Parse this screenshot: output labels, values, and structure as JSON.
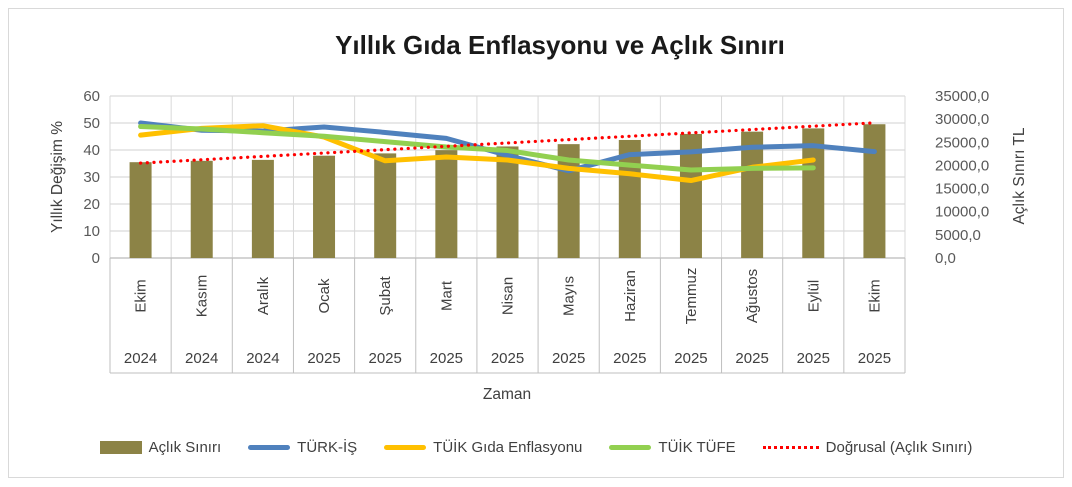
{
  "chart_data": {
    "type": "combo-bar-line",
    "title": "Yıllık Gıda Enflasyonu ve Açlık Sınırı",
    "x_axis": {
      "title": "Zaman",
      "month_labels": [
        "Ekim",
        "Kasım",
        "Aralık",
        "Ocak",
        "Şubat",
        "Mart",
        "Nisan",
        "Mayıs",
        "Haziran",
        "Temmuz",
        "Ağustos",
        "Eylül",
        "Ekim"
      ],
      "year_labels": [
        "2024",
        "2024",
        "2024",
        "2025",
        "2025",
        "2025",
        "2025",
        "2025",
        "2025",
        "2025",
        "2025",
        "2025",
        "2025"
      ]
    },
    "y_axis_left": {
      "title": "Yıllık Değişim %",
      "min": 0,
      "max": 60,
      "tick_labels": [
        "60",
        "50",
        "40",
        "30",
        "20",
        "10",
        "0"
      ]
    },
    "y_axis_right": {
      "title": "Açlık Sınırı TL",
      "min": 0,
      "max": 35000,
      "tick_labels": [
        "35000,0",
        "30000,0",
        "25000,0",
        "20000,0",
        "15000,0",
        "10000,0",
        "5000,0",
        "0,0"
      ]
    },
    "grid": {
      "horizontal": true,
      "vertical": true,
      "color": "#d9d9d9",
      "axis_line_color": "#bfbfbf"
    },
    "series": [
      {
        "name": "Açlık Sınırı",
        "type": "bar",
        "axis": "right",
        "color": "#8C8346",
        "values": [
          20700,
          21000,
          21200,
          22100,
          22600,
          23300,
          24100,
          24600,
          25500,
          26800,
          27300,
          28000,
          28900
        ]
      },
      {
        "name": "TÜRK-İŞ",
        "type": "line",
        "axis": "left",
        "color": "#4F81BD",
        "values": [
          50.0,
          47.3,
          47.0,
          48.5,
          46.5,
          44.3,
          38.0,
          32.3,
          38.3,
          39.3,
          41.0,
          41.6,
          39.4
        ]
      },
      {
        "name": "TÜİK Gıda Enflasyonu",
        "type": "line",
        "axis": "left",
        "color": "#FFC000",
        "values": [
          45.5,
          48.0,
          49.0,
          44.8,
          36.0,
          37.4,
          36.3,
          33.2,
          31.2,
          28.7,
          33.6,
          36.3,
          null
        ]
      },
      {
        "name": "TÜİK TÜFE",
        "type": "line",
        "axis": "left",
        "color": "#92D050",
        "values": [
          48.7,
          47.8,
          46.4,
          45.1,
          43.1,
          41.1,
          39.8,
          36.3,
          34.4,
          32.6,
          33.2,
          33.4,
          null
        ]
      },
      {
        "name": "Doğrusal (Açlık Sınırı)",
        "type": "trendline",
        "axis": "right",
        "color": "#FF0000",
        "style": "dotted",
        "endpoints": [
          20500,
          29200
        ]
      }
    ],
    "legend": {
      "position": "bottom",
      "entries": [
        "Açlık Sınırı",
        "TÜRK-İŞ",
        "TÜİK Gıda Enflasyonu",
        "TÜİK TÜFE",
        "Doğrusal (Açlık Sınırı)"
      ]
    }
  }
}
